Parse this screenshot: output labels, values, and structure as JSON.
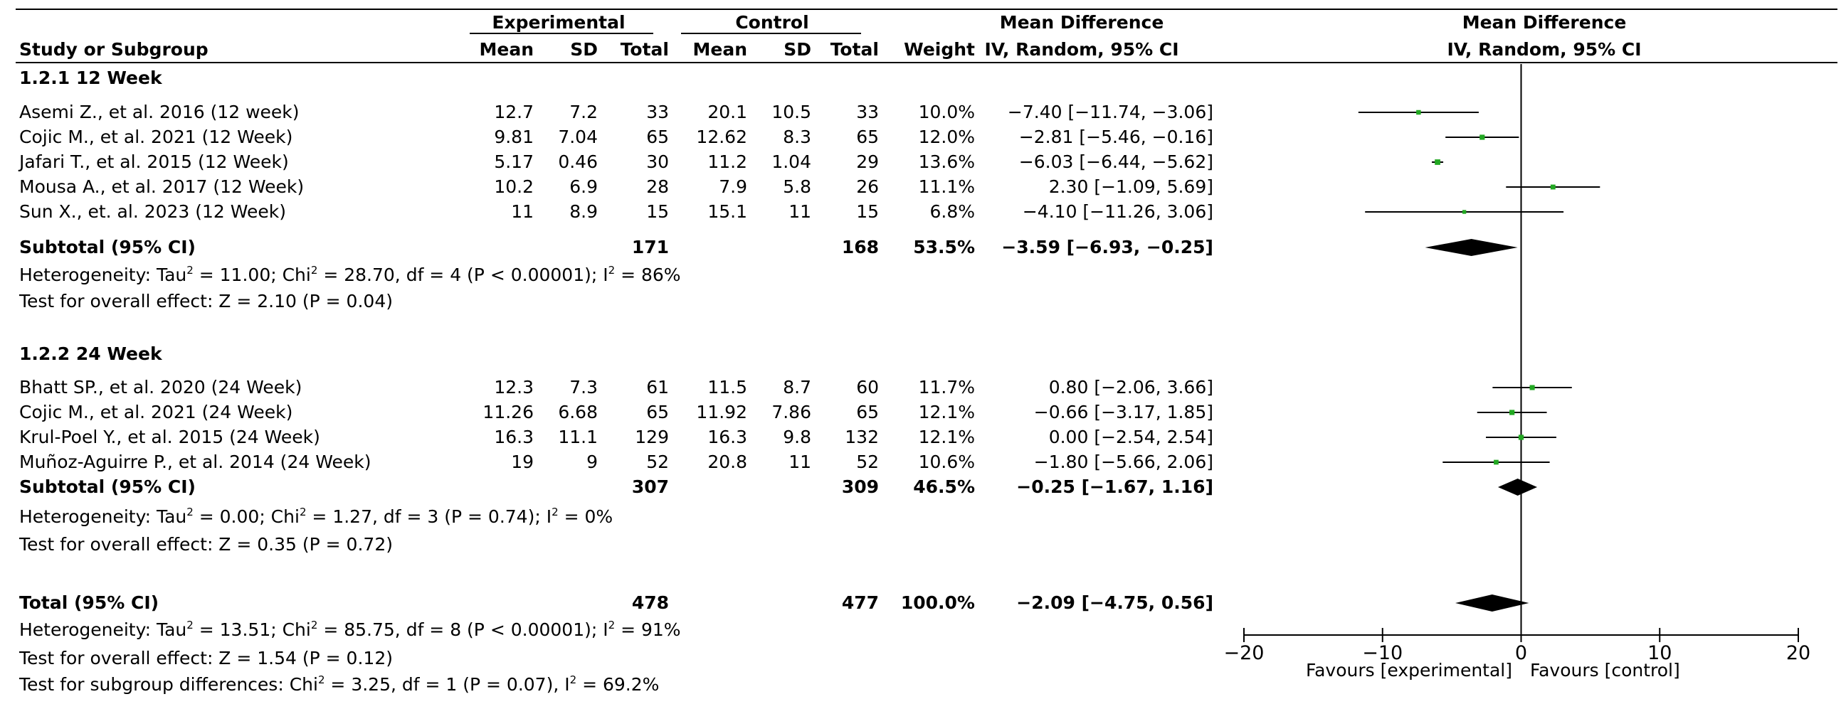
{
  "header": {
    "study_col": "Study or Subgroup",
    "experimental": "Experimental",
    "control": "Control",
    "mean": "Mean",
    "sd": "SD",
    "total": "Total",
    "weight": "Weight",
    "md_title": "Mean Difference",
    "md_method": "IV, Random, 95% CI",
    "plot_title": "Mean Difference",
    "plot_method": "IV, Random, 95% CI"
  },
  "groups": [
    {
      "label": "1.2.1 12 Week",
      "studies": [
        {
          "name": "Asemi Z., et al. 2016 (12 week)",
          "exp_mean": "12.7",
          "exp_sd": "7.2",
          "exp_total": "33",
          "ctl_mean": "20.1",
          "ctl_sd": "10.5",
          "ctl_total": "33",
          "weight": "10.0%",
          "ci_text": "−7.40 [−11.74, −3.06]"
        },
        {
          "name": "Cojic M., et al. 2021 (12 Week)",
          "exp_mean": "9.81",
          "exp_sd": "7.04",
          "exp_total": "65",
          "ctl_mean": "12.62",
          "ctl_sd": "8.3",
          "ctl_total": "65",
          "weight": "12.0%",
          "ci_text": "−2.81 [−5.46, −0.16]"
        },
        {
          "name": "Jafari T., et al. 2015 (12 Week)",
          "exp_mean": "5.17",
          "exp_sd": "0.46",
          "exp_total": "30",
          "ctl_mean": "11.2",
          "ctl_sd": "1.04",
          "ctl_total": "29",
          "weight": "13.6%",
          "ci_text": "−6.03 [−6.44, −5.62]"
        },
        {
          "name": "Mousa A., et al. 2017 (12 Week)",
          "exp_mean": "10.2",
          "exp_sd": "6.9",
          "exp_total": "28",
          "ctl_mean": "7.9",
          "ctl_sd": "5.8",
          "ctl_total": "26",
          "weight": "11.1%",
          "ci_text": "2.30 [−1.09, 5.69]"
        },
        {
          "name": "Sun X., et. al. 2023 (12 Week)",
          "exp_mean": "11",
          "exp_sd": "8.9",
          "exp_total": "15",
          "ctl_mean": "15.1",
          "ctl_sd": "11",
          "ctl_total": "15",
          "weight": "6.8%",
          "ci_text": "−4.10 [−11.26, 3.06]"
        }
      ],
      "subtotal": {
        "label": "Subtotal (95% CI)",
        "exp_total": "171",
        "ctl_total": "168",
        "weight": "53.5%",
        "ci_text": "−3.59 [−6.93, −0.25]"
      },
      "heterogeneity": {
        "a": "Heterogeneity: Tau",
        "b": " = 11.00; Chi",
        "c": " = 28.70, df = 4 (P < 0.00001); I",
        "d": " = 86%"
      },
      "overall": "Test for overall effect: Z = 2.10 (P = 0.04)"
    },
    {
      "label": "1.2.2 24 Week",
      "studies": [
        {
          "name": "Bhatt SP., et al. 2020 (24 Week)",
          "exp_mean": "12.3",
          "exp_sd": "7.3",
          "exp_total": "61",
          "ctl_mean": "11.5",
          "ctl_sd": "8.7",
          "ctl_total": "60",
          "weight": "11.7%",
          "ci_text": "0.80 [−2.06, 3.66]"
        },
        {
          "name": "Cojic M., et al. 2021 (24 Week)",
          "exp_mean": "11.26",
          "exp_sd": "6.68",
          "exp_total": "65",
          "ctl_mean": "11.92",
          "ctl_sd": "7.86",
          "ctl_total": "65",
          "weight": "12.1%",
          "ci_text": "−0.66 [−3.17, 1.85]"
        },
        {
          "name": "Krul-Poel Y., et al. 2015 (24 Week)",
          "exp_mean": "16.3",
          "exp_sd": "11.1",
          "exp_total": "129",
          "ctl_mean": "16.3",
          "ctl_sd": "9.8",
          "ctl_total": "132",
          "weight": "12.1%",
          "ci_text": "0.00 [−2.54, 2.54]"
        },
        {
          "name": "Muñoz-Aguirre P., et al. 2014 (24 Week)",
          "exp_mean": "19",
          "exp_sd": "9",
          "exp_total": "52",
          "ctl_mean": "20.8",
          "ctl_sd": "11",
          "ctl_total": "52",
          "weight": "10.6%",
          "ci_text": "−1.80 [−5.66, 2.06]"
        }
      ],
      "subtotal": {
        "label": "Subtotal (95% CI)",
        "exp_total": "307",
        "ctl_total": "309",
        "weight": "46.5%",
        "ci_text": "−0.25 [−1.67, 1.16]"
      },
      "heterogeneity": {
        "a": "Heterogeneity: Tau",
        "b": " = 0.00; Chi",
        "c": " = 1.27, df = 3 (P = 0.74); I",
        "d": " = 0%"
      },
      "overall": "Test for overall effect: Z = 0.35 (P = 0.72)"
    }
  ],
  "total": {
    "label": "Total (95% CI)",
    "exp_total": "478",
    "ctl_total": "477",
    "weight": "100.0%",
    "ci_text": "−2.09 [−4.75, 0.56]",
    "heterogeneity": {
      "a": "Heterogeneity: Tau",
      "b": " = 13.51; Chi",
      "c": " = 85.75, df = 8 (P < 0.00001); I",
      "d": " = 91%"
    },
    "overall": "Test for overall effect: Z = 1.54 (P = 0.12)",
    "subgroup": {
      "a": "Test for subgroup differences: Chi",
      "b": " = 3.25, df = 1 (P = 0.07), I",
      "c": " = 69.2%"
    }
  },
  "axis": {
    "favours_left": "Favours [experimental]",
    "favours_right": "Favours [control]"
  },
  "superscript": "2",
  "colors": {
    "point": "#22a822",
    "line": "#000000",
    "diamond": "#000000"
  },
  "chart_data": {
    "type": "forest",
    "title": "Mean Difference",
    "subtitle": "IV, Random, 95% CI",
    "xlim": [
      -20,
      20
    ],
    "ticks": [
      -20,
      -10,
      0,
      10,
      20
    ],
    "tick_labels": [
      "−20",
      "−10",
      "0",
      "10",
      "20"
    ],
    "studies": [
      {
        "name": "Asemi Z., et al. 2016 (12 week)",
        "md": -7.4,
        "lo": -11.74,
        "hi": -3.06,
        "weight": 10.0
      },
      {
        "name": "Cojic M., et al. 2021 (12 Week)",
        "md": -2.81,
        "lo": -5.46,
        "hi": -0.16,
        "weight": 12.0
      },
      {
        "name": "Jafari T., et al. 2015 (12 Week)",
        "md": -6.03,
        "lo": -6.44,
        "hi": -5.62,
        "weight": 13.6
      },
      {
        "name": "Mousa A., et al. 2017 (12 Week)",
        "md": 2.3,
        "lo": -1.09,
        "hi": 5.69,
        "weight": 11.1
      },
      {
        "name": "Sun X., et. al. 2023 (12 Week)",
        "md": -4.1,
        "lo": -11.26,
        "hi": 3.06,
        "weight": 6.8
      },
      {
        "name": "Bhatt SP., et al. 2020 (24 Week)",
        "md": 0.8,
        "lo": -2.06,
        "hi": 3.66,
        "weight": 11.7
      },
      {
        "name": "Cojic M., et al. 2021 (24 Week)",
        "md": -0.66,
        "lo": -3.17,
        "hi": 1.85,
        "weight": 12.1
      },
      {
        "name": "Krul-Poel Y., et al. 2015 (24 Week)",
        "md": 0.0,
        "lo": -2.54,
        "hi": 2.54,
        "weight": 12.1
      },
      {
        "name": "Muñoz-Aguirre P., et al. 2014 (24 Week)",
        "md": -1.8,
        "lo": -5.66,
        "hi": 2.06,
        "weight": 10.6
      }
    ],
    "pooled": [
      {
        "name": "Subtotal 12 Week",
        "md": -3.59,
        "lo": -6.93,
        "hi": -0.25
      },
      {
        "name": "Subtotal 24 Week",
        "md": -0.25,
        "lo": -1.67,
        "hi": 1.16
      },
      {
        "name": "Total",
        "md": -2.09,
        "lo": -4.75,
        "hi": 0.56
      }
    ]
  }
}
